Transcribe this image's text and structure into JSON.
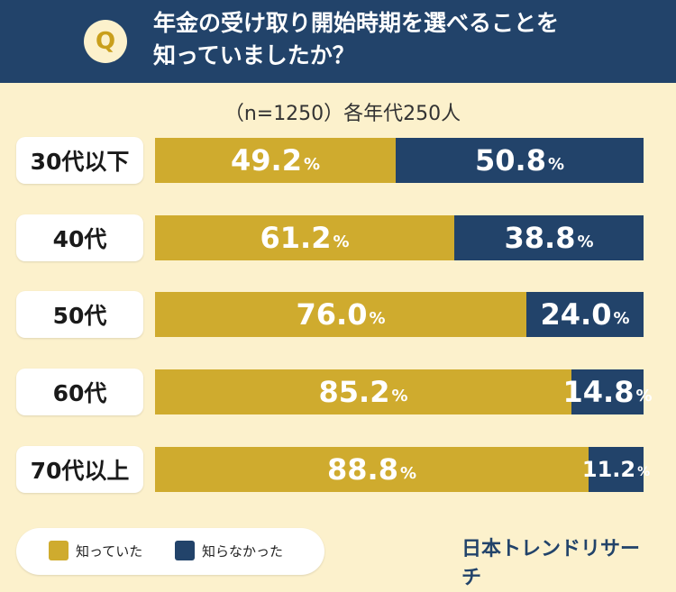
{
  "header": {
    "badge": "Q",
    "question_line1": "年金の受け取り開始時期を選べることを",
    "question_line2": "知っていましたか？"
  },
  "sample_note": "（n=1250）各年代250人",
  "legend": [
    {
      "label": "知っていた",
      "color": "#cfab2e"
    },
    {
      "label": "知らなかった",
      "color": "#22436a"
    }
  ],
  "brand": "日本トレンドリサーチ",
  "colors": {
    "known": "#cfab2e",
    "unknown": "#22436a",
    "background": "#fcf1cc"
  },
  "chart_data": {
    "type": "bar",
    "stacked": true,
    "orientation": "horizontal",
    "unit": "%",
    "categories": [
      "30代以下",
      "40代",
      "50代",
      "60代",
      "70代以上"
    ],
    "series": [
      {
        "name": "知っていた",
        "values": [
          "49.2",
          "61.2",
          "76.0",
          "85.2",
          "88.8"
        ]
      },
      {
        "name": "知らなかった",
        "values": [
          "50.8",
          "38.8",
          "24.0",
          "14.8",
          "11.2"
        ]
      }
    ],
    "xlim": [
      0,
      100
    ]
  }
}
